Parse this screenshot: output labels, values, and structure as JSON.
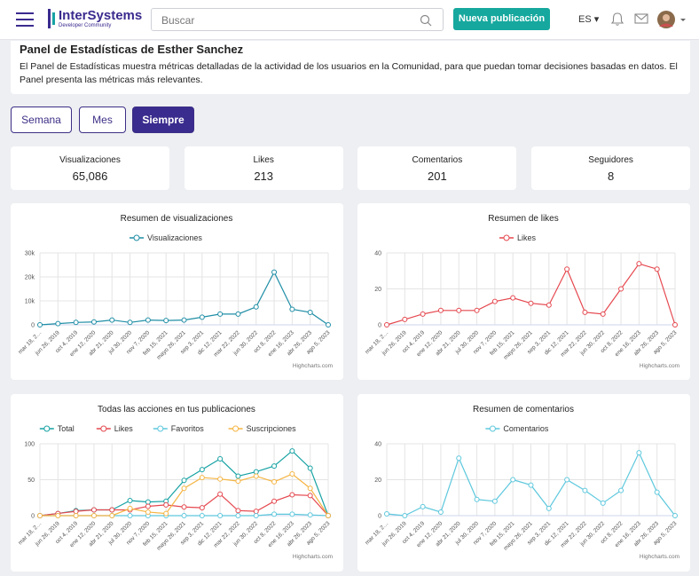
{
  "header": {
    "brand": "InterSystems",
    "brand_sub": "Developer Community",
    "search_placeholder": "Buscar",
    "new_post": "Nueva publicación",
    "language": "ES"
  },
  "panel": {
    "title": "Panel de Estadísticas de Esther Sanchez",
    "description": "El Panel de Estadísticas muestra métricas detalladas de la actividad de los usuarios en la Comunidad, para que puedan tomar decisiones basadas en datos. El Panel presenta las métricas más relevantes."
  },
  "tabs": [
    "Semana",
    "Mes",
    "Siempre"
  ],
  "active_tab": 2,
  "stats": [
    {
      "label": "Visualizaciones",
      "value": 65086,
      "value_label": "65,086"
    },
    {
      "label": "Likes",
      "value": 213
    },
    {
      "label": "Comentarios",
      "value": 201
    },
    {
      "label": "Seguidores",
      "value": 8
    }
  ],
  "credits": "Highcharts.com",
  "chart_data": [
    {
      "type": "line",
      "title": "Resumen de visualizaciones",
      "categories": [
        "mar 18, 2…",
        "jun 26, 2019",
        "oct 4, 2019",
        "ene 12, 2020",
        "abr 21, 2020",
        "jul 30, 2020",
        "nov 7, 2020",
        "feb 15, 2021",
        "mayo 26, 2021",
        "sep 3, 2021",
        "dic 12, 2021",
        "mar 22, 2022",
        "jun 30, 2022",
        "oct 8, 2022",
        "ene 16, 2023",
        "abr 26, 2023",
        "ago 5, 2023"
      ],
      "series": [
        {
          "name": "Visualizaciones",
          "color": "#1f8ea6",
          "values": [
            0,
            500,
            1000,
            1200,
            2000,
            1000,
            2000,
            1800,
            2000,
            3200,
            4500,
            4500,
            7500,
            22000,
            6500,
            5200,
            0
          ]
        }
      ],
      "ylim": [
        0,
        30000
      ],
      "yticks": [
        0,
        {
          "value": 10000,
          "label": "10k"
        },
        {
          "value": 20000,
          "label": "20k"
        },
        {
          "value": 30000,
          "label": "30k"
        }
      ],
      "grid": true
    },
    {
      "type": "line",
      "title": "Resumen de likes",
      "categories": [
        "mar 18, 2…",
        "jun 26, 2019",
        "oct 4, 2019",
        "ene 12, 2020",
        "abr 21, 2020",
        "jul 30, 2020",
        "nov 7, 2020",
        "feb 15, 2021",
        "mayo 26, 2021",
        "sep 3, 2021",
        "dic 12, 2021",
        "mar 22, 2022",
        "jun 30, 2022",
        "oct 8, 2022",
        "ene 16, 2023",
        "abr 26, 2023",
        "ago 5, 2023"
      ],
      "series": [
        {
          "name": "Likes",
          "color": "#e5484f",
          "values": [
            0,
            3,
            6,
            8,
            8,
            8,
            13,
            15,
            12,
            11,
            31,
            7,
            6,
            20,
            34,
            31,
            0
          ]
        }
      ],
      "ylim": [
        0,
        40
      ],
      "yticks": [
        0,
        20,
        40
      ],
      "grid": true
    },
    {
      "type": "line",
      "title": "Todas las acciones en tus publicaciones",
      "categories": [
        "mar 18, 2…",
        "jun 26, 2019",
        "oct 4, 2019",
        "ene 12, 2020",
        "abr 21, 2020",
        "jul 30, 2020",
        "nov 7, 2020",
        "feb 15, 2021",
        "mayo 26, 2021",
        "sep 3, 2021",
        "dic 12, 2021",
        "mar 22, 2022",
        "jun 30, 2022",
        "oct 8, 2022",
        "ene 16, 2023",
        "abr 26, 2023",
        "ago 5, 2023"
      ],
      "series": [
        {
          "name": "Total",
          "color": "#17a2a4",
          "values": [
            0,
            3,
            7,
            8,
            8,
            21,
            19,
            20,
            49,
            64,
            79,
            55,
            61,
            69,
            90,
            66,
            0
          ]
        },
        {
          "name": "Likes",
          "color": "#e5484f",
          "values": [
            0,
            3,
            6,
            8,
            8,
            8,
            13,
            15,
            12,
            11,
            30,
            7,
            6,
            20,
            29,
            28,
            0
          ]
        },
        {
          "name": "Favoritos",
          "color": "#5ec8dd",
          "values": [
            0,
            0,
            0,
            0,
            0,
            0,
            0,
            0,
            0,
            0,
            0,
            0,
            0,
            2,
            2,
            1,
            0
          ]
        },
        {
          "name": "Suscripciones",
          "color": "#f5b544",
          "values": [
            0,
            0,
            0,
            0,
            0,
            10,
            5,
            3,
            38,
            53,
            51,
            48,
            55,
            47,
            58,
            38,
            0
          ]
        }
      ],
      "ylim": [
        0,
        100
      ],
      "yticks": [
        0,
        50,
        100
      ],
      "grid": true
    },
    {
      "type": "line",
      "title": "Resumen de comentarios",
      "categories": [
        "mar 18, 2…",
        "jun 26, 2019",
        "oct 4, 2019",
        "ene 12, 2020",
        "abr 21, 2020",
        "jul 30, 2020",
        "nov 7, 2020",
        "feb 15, 2021",
        "mayo 26, 2021",
        "sep 3, 2021",
        "dic 12, 2021",
        "mar 22, 2022",
        "jun 30, 2022",
        "oct 8, 2022",
        "ene 16, 2023",
        "abr 26, 2023",
        "ago 5, 2023"
      ],
      "series": [
        {
          "name": "Comentarios",
          "color": "#5ec8dd",
          "values": [
            1,
            0,
            5,
            2,
            32,
            9,
            8,
            20,
            17,
            4,
            20,
            14,
            7,
            14,
            35,
            13,
            0
          ]
        }
      ],
      "ylim": [
        0,
        40
      ],
      "yticks": [
        0,
        20,
        40
      ],
      "grid": true
    }
  ]
}
